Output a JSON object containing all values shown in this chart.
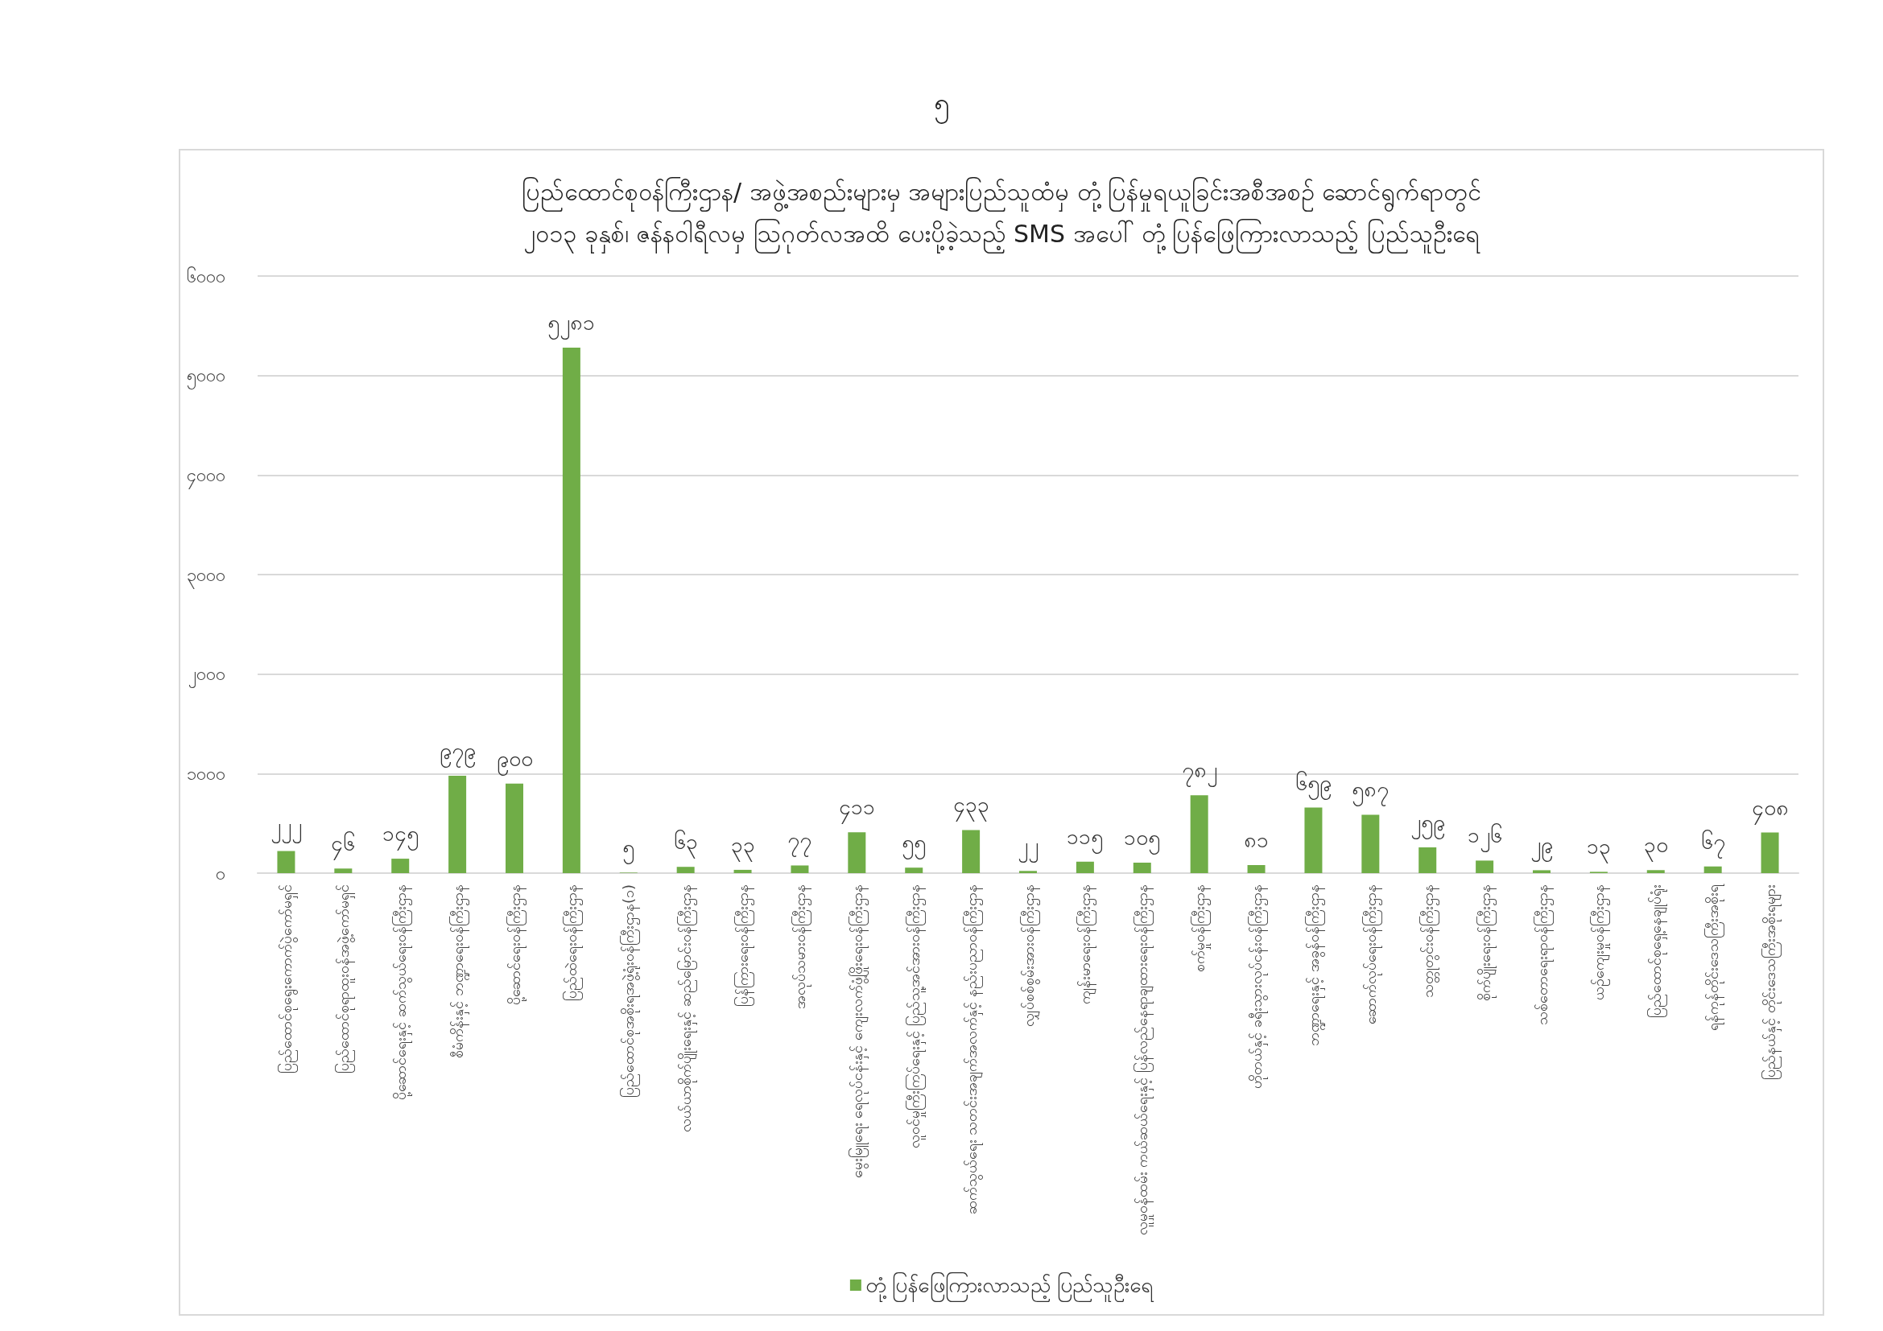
{
  "chart_data": {
    "type": "bar",
    "title": "ပြည်ထောင်စုဝန်ကြီးဌာန/ အဖွဲ့အစည်းများမှ အများပြည်သူထံမှ တုံ့ပြန်မှုရယူခြင်းအစီအစဉ် ဆောင်ရွက်ရာတွင်\n၂၀၁၃ ခုနှစ်၊ ဇန်နဝါရီလမှ သြဂုတ်လအထိ ပေးပို့ခဲ့သည့် SMS အပေါ် တုံ့ပြန်ဖြေကြားလာသည့် ပြည်သူဦးရေ",
    "annotations": [
      "၅"
    ],
    "categories": [
      "ပြည်ထောင်စုရွေးကောက်ပွဲကော်မရှင်",
      "ပြည်ထောင်စုရာထူးဝန်အဖွဲ့ကော်မရှင်",
      "ပို့ဆောင်ရေးနှင့် ဆက်သွယ်ရေးဝန်ကြီးဌာန",
      "စီမံကိန်းနှင့် ဘဏ္ဍာရေးဝန်ကြီးဌာန",
      "ပို့ဆောင်ရေးဝန်ကြီးဌာန",
      "ပြည်ထဲရေးဝန်ကြီးဌာန",
      "ပြည်ထောင်စုအစိုးရအဖွဲ့ရုံးဝန်ကြီးဌာန(၁)",
      "လယ်ယာစိုက်ပျိုးရေးနှင့် ဆည်မြောင်းဝန်ကြီးဌာန",
      "ပြန်ကြားရေးဝန်ကြီးဌာန",
      "အလုပ်သမားဝန်ကြီးဌာန",
      "မွေးမြူရေး ရေလုပ်ငန်းနှင့် ကျေးလက်ဖွံ့ဖြိုးရေးဝန်ကြီးဌာန",
      "လူဝင်မှုကြီးကြပ်ရေးနှင့် ပြည်သူ့အင်အားဝန်ကြီးဌာန",
      "ဆက်သွယ်ရေး သတင်းအချက်အလက်နှင့် နည်းပညာဝန်ကြီးဌာန",
      "လျှပ်စစ်စွမ်းအားဝန်ကြီးဌာန",
      "ကျန်းမာရေးဝန်ကြီးဌာန",
      "လူမှုဝန်ထမ်း ကယ်ဆယ်ရေးနှင့် ပြန်လည်နေရာချထားရေးဝန်ကြီးဌာန",
      "စက်မှုဝန်ကြီးဌာန",
      "ဟိုတယ်နှင့် ခရီးသွားလုပ်ငန်းဝန်ကြီးဌာန",
      "ဘဏ္ဍာရေးနှင့် အခွန်ဝန်ကြီးဌာန",
      "ဆောက်လုပ်ရေးဝန်ကြီးဌာန",
      "သတ္တုတွင်းဝန်ကြီးဌာန",
      "စိုက်ပျိုးရေးဝန်ကြီးဌာန",
      "သစ်တောရေးရာဝန်ကြီးဌာန",
      "ယဉ်ကျေးမှုဝန်ကြီးဌာန",
      "ပြည်ထောင်စုရှေ့နေချုပ်ရုံး",
      "ရန်ကုန်တိုင်းဒေသကြီးအစိုးရ",
      "ပြည်နယ်နှင့် တိုင်းဒေသကြီးအစိုးရများ"
    ],
    "series": [
      {
        "name": "တုံ့ပြန်ဖြေကြားလာသည့် ပြည်သူဦးရေ",
        "color": "#70ad47",
        "values": [
          222,
          46,
          145,
          979,
          900,
          5281,
          5,
          63,
          33,
          77,
          411,
          55,
          433,
          22,
          115,
          105,
          782,
          81,
          659,
          587,
          259,
          126,
          29,
          13,
          30,
          67,
          408
        ],
        "value_labels": [
          "၂၂၂",
          "၄၆",
          "၁၄၅",
          "၉၇၉",
          "၉၀၀",
          "၅၂၈၁",
          "၅",
          "၆၃",
          "၃၃",
          "၇၇",
          "၄၁၁",
          "၅၅",
          "၄၃၃",
          "၂၂",
          "၁၁၅",
          "၁၀၅",
          "၇၈၂",
          "၈၁",
          "၆၅၉",
          "၅၈၇",
          "၂၅၉",
          "၁၂၆",
          "၂၉",
          "၁၃",
          "၃၀",
          "၆၇",
          "၄၀၈"
        ]
      }
    ],
    "ylim": [
      0,
      6000
    ],
    "yticks": [
      {
        "value": 0,
        "label": "၀"
      },
      {
        "value": 1000,
        "label": "၁၀၀၀"
      },
      {
        "value": 2000,
        "label": "၂၀၀၀"
      },
      {
        "value": 3000,
        "label": "၃၀၀၀"
      },
      {
        "value": 4000,
        "label": "၄၀၀၀"
      },
      {
        "value": 5000,
        "label": "၅၀၀၀"
      },
      {
        "value": 6000,
        "label": "၆၀၀၀"
      }
    ],
    "grid": "y",
    "legend": "bottom"
  }
}
